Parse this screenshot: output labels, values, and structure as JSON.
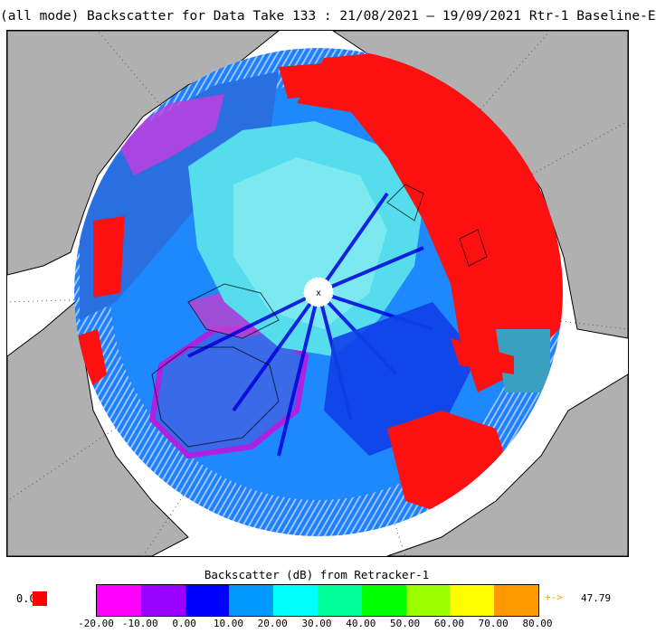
{
  "title": "(all mode) Backscatter for Data Take 133 : 21/08/2021 – 19/09/2021 Rtr-1 Baseline-E",
  "legend": {
    "title": "Backscatter (dB) from Retracker-1",
    "low_label": "0.0",
    "low_color": "#ff0000",
    "high_arrow": "+->",
    "high_value": "47.79",
    "high_color": "#ff9900",
    "ticks": [
      "-20.00",
      "-10.00",
      "0.00",
      "10.00",
      "20.00",
      "30.00",
      "40.00",
      "50.00",
      "60.00",
      "70.00",
      "80.00"
    ],
    "colors": [
      "#ff00ff",
      "#9900ff",
      "#0000ff",
      "#0099ff",
      "#00ffff",
      "#00ff99",
      "#00ff00",
      "#99ff00",
      "#ffff00",
      "#ff9900"
    ]
  },
  "map": {
    "projection": "north-polar-stereographic",
    "land_color": "#b0b0b0",
    "ocean_color": "#ffffff",
    "pole_marker": "x"
  }
}
